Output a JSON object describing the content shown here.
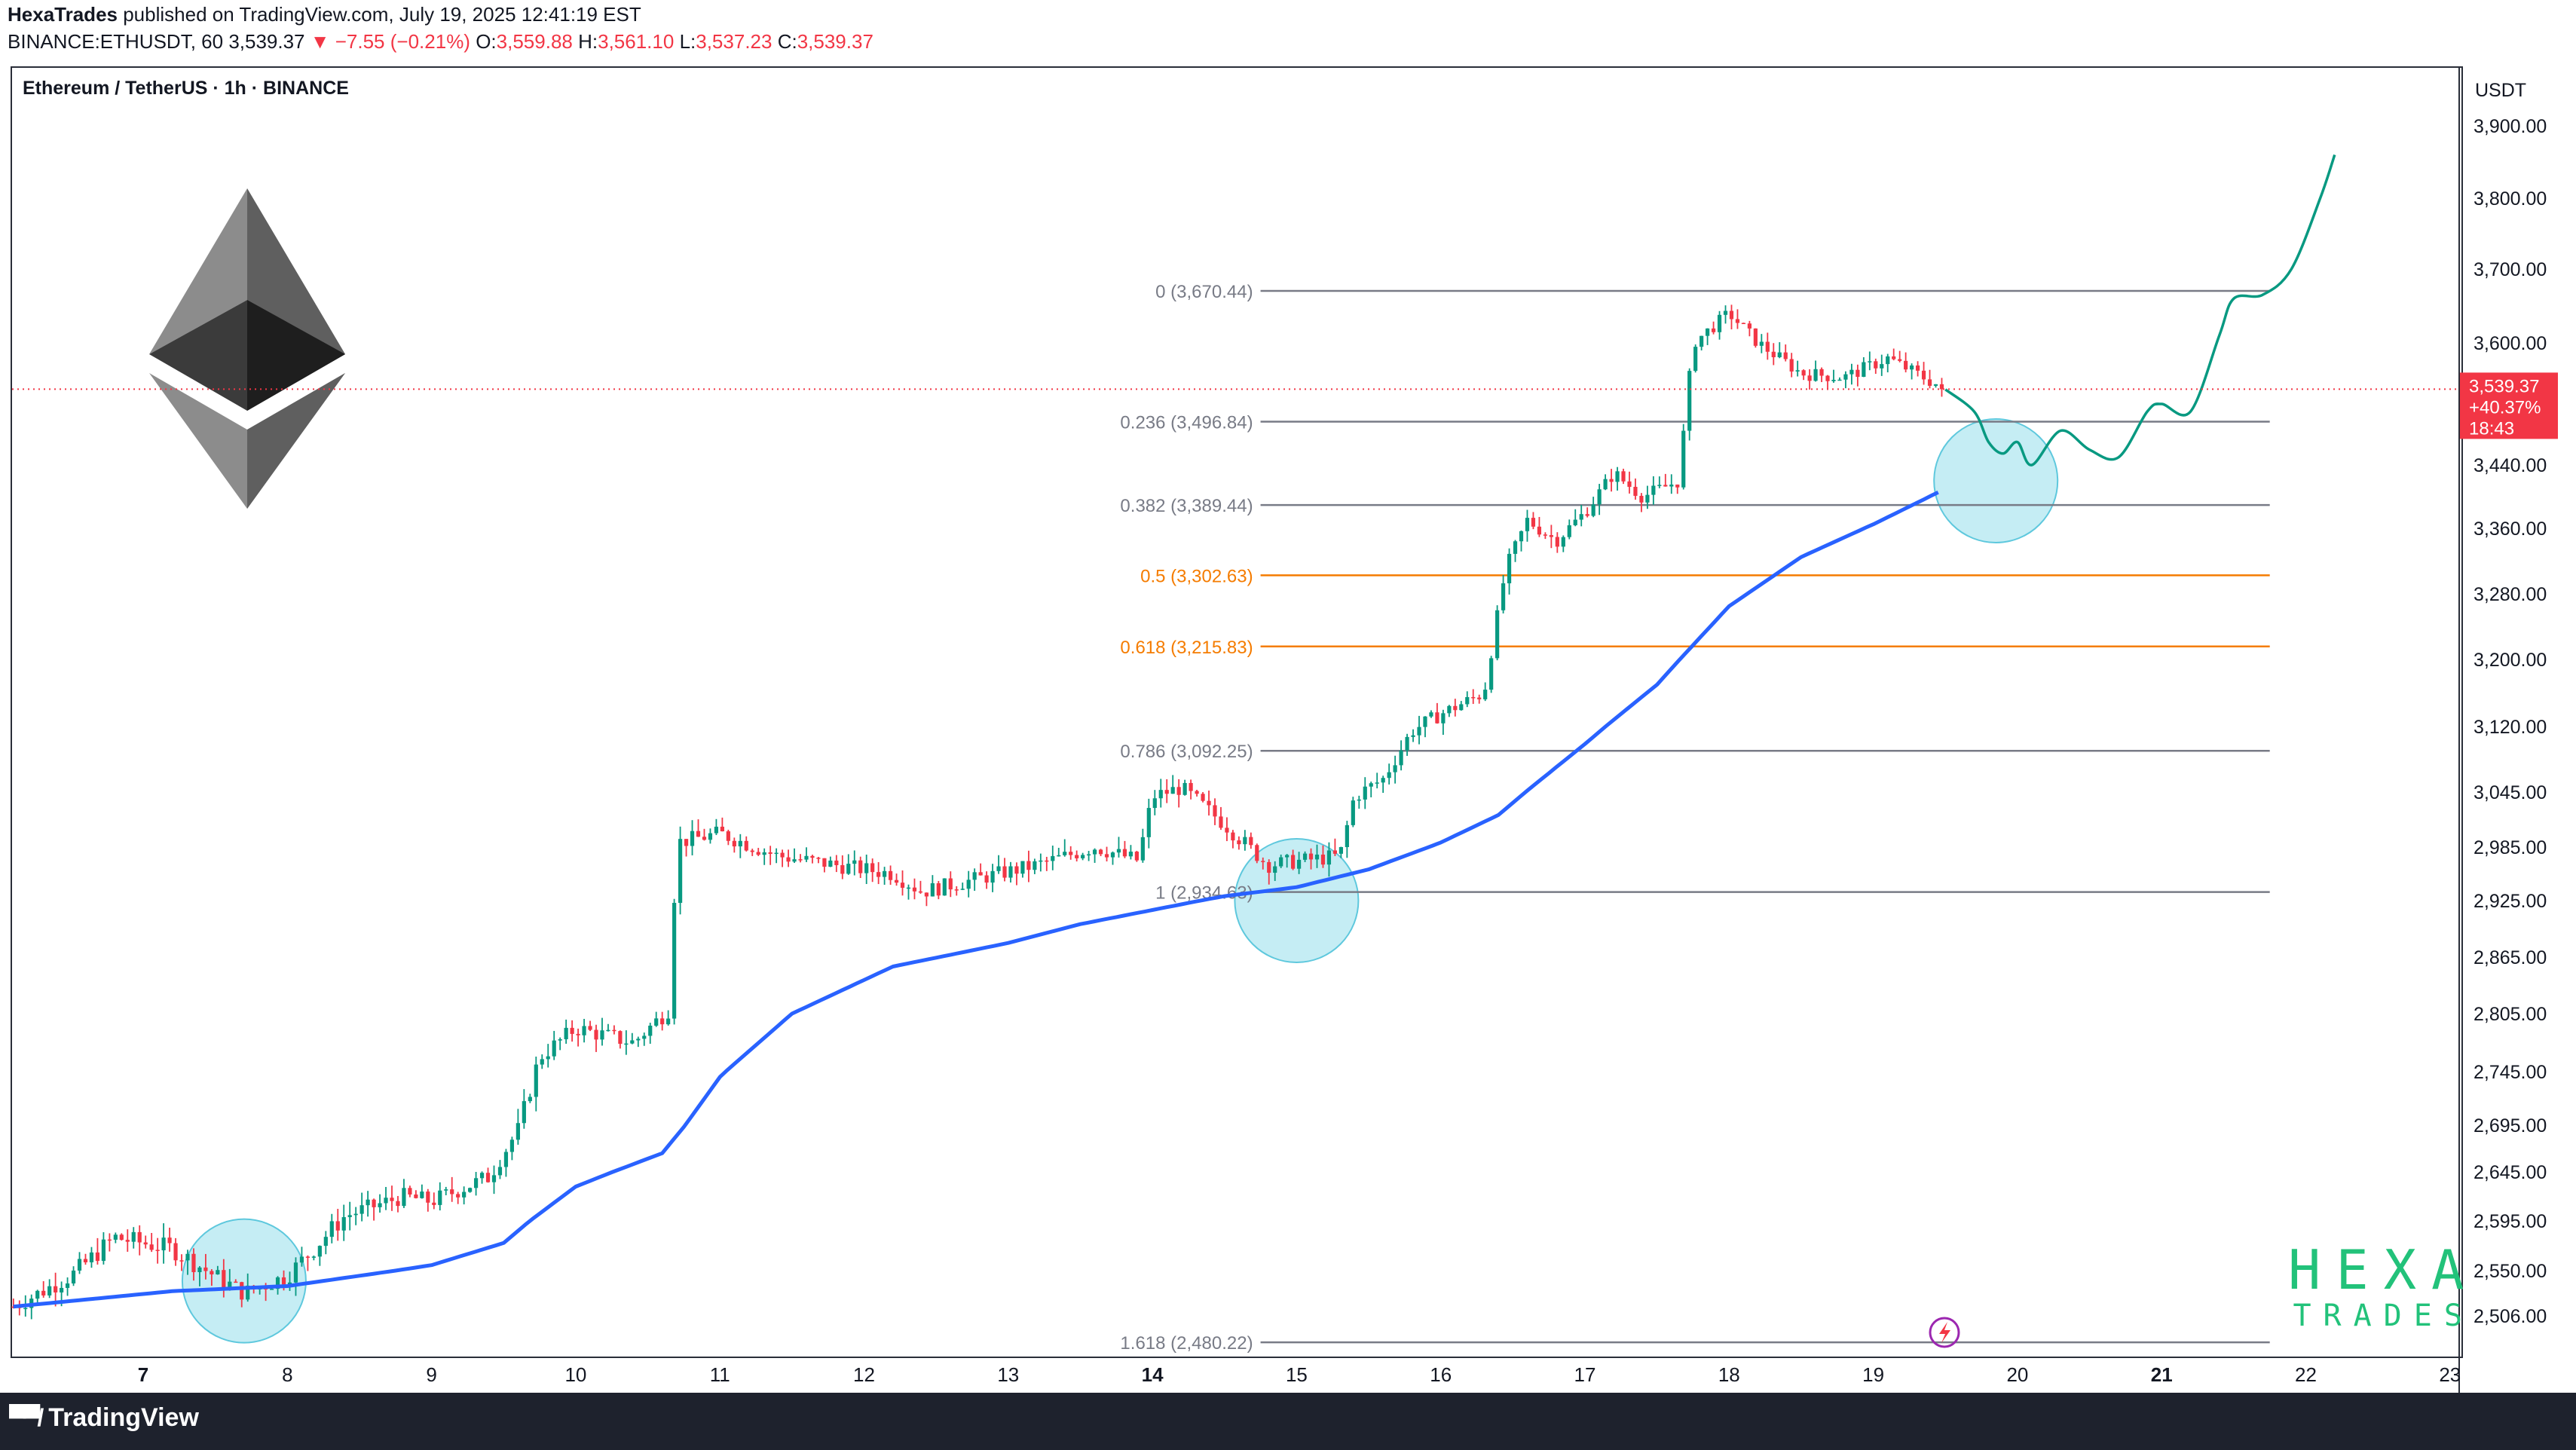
{
  "header": {
    "publisher": "HexaTrades",
    "published_text": "published on TradingView.com, July 19, 2025 12:41:19 EST",
    "symbol": "BINANCE:ETHUSDT, 60",
    "last": "3,539.37",
    "change": "−7.55 (−0.21%)",
    "o_label": "O:",
    "o_value": "3,559.88",
    "h_label": "H:",
    "h_value": "3,561.10",
    "l_label": "L:",
    "l_value": "3,537.23",
    "c_label": "C:",
    "c_value": "3,539.37"
  },
  "chart_title": "Ethereum / TetherUS · 1h · BINANCE",
  "currency": "USDT",
  "price_badge": {
    "price": "3,539.37",
    "change": "+40.37%",
    "timer": "18:43"
  },
  "footer": {
    "brand": "TradingView"
  },
  "watermark": {
    "line1": "HEXA",
    "line2": "TRADES"
  },
  "colors": {
    "up": "#089981",
    "down": "#f23645",
    "ema": "#2962ff",
    "fib_grey": "#787b86",
    "fib_orange": "#f57c00",
    "projection": "#089981",
    "highlight": "#7fd6e6",
    "price_line": "#f23645"
  },
  "chart_data": {
    "type": "candlestick",
    "title": "Ethereum / TetherUS · 1h · BINANCE",
    "y_unit": "USDT",
    "y_ticks": [
      "3,900.00",
      "3,800.00",
      "3,700.00",
      "3,600.00",
      "3,440.00",
      "3,360.00",
      "3,280.00",
      "3,200.00",
      "3,120.00",
      "3,045.00",
      "2,985.00",
      "2,925.00",
      "2,865.00",
      "2,805.00",
      "2,745.00",
      "2,695.00",
      "2,645.00",
      "2,595.00",
      "2,550.00",
      "2,506.00"
    ],
    "y_tick_values": [
      3900,
      3800,
      3700,
      3600,
      3440,
      3360,
      3280,
      3200,
      3120,
      3045,
      2985,
      2925,
      2865,
      2805,
      2745,
      2695,
      2645,
      2595,
      2550,
      2506
    ],
    "x_ticks": [
      "7",
      "8",
      "9",
      "10",
      "11",
      "12",
      "13",
      "14",
      "15",
      "16",
      "17",
      "18",
      "19",
      "20",
      "21",
      "22",
      "23"
    ],
    "x_ticks_bold": [
      "7",
      "14",
      "21"
    ],
    "x_range_days": [
      6.1,
      23.0
    ],
    "fib_levels": [
      {
        "label": "0 (3,670.44)",
        "value": 3670.44,
        "color": "grey"
      },
      {
        "label": "0.236 (3,496.84)",
        "value": 3496.84,
        "color": "grey"
      },
      {
        "label": "0.382 (3,389.44)",
        "value": 3389.44,
        "color": "grey"
      },
      {
        "label": "0.5 (3,302.63)",
        "value": 3302.63,
        "color": "orange"
      },
      {
        "label": "0.618 (3,215.83)",
        "value": 3215.83,
        "color": "orange"
      },
      {
        "label": "0.786 (3,092.25)",
        "value": 3092.25,
        "color": "grey"
      },
      {
        "label": "1 (2,934.63)",
        "value": 2934.63,
        "color": "grey"
      },
      {
        "label": "1.618 (2,480.22)",
        "value": 2480.22,
        "color": "grey"
      }
    ],
    "fib_range_days": [
      14.75,
      21.75
    ],
    "last_price": 3539.37,
    "price_anchors_day_close": [
      [
        6.1,
        2515
      ],
      [
        6.5,
        2545
      ],
      [
        6.8,
        2580
      ],
      [
        7.2,
        2570
      ],
      [
        7.7,
        2528
      ],
      [
        8.0,
        2545
      ],
      [
        8.4,
        2600
      ],
      [
        8.8,
        2620
      ],
      [
        9.0,
        2615
      ],
      [
        9.4,
        2640
      ],
      [
        9.6,
        2690
      ],
      [
        9.75,
        2760
      ],
      [
        10.0,
        2790
      ],
      [
        10.4,
        2775
      ],
      [
        10.65,
        2810
      ],
      [
        10.7,
        2990
      ],
      [
        11.0,
        3000
      ],
      [
        11.4,
        2975
      ],
      [
        11.8,
        2965
      ],
      [
        12.2,
        2955
      ],
      [
        12.4,
        2935
      ],
      [
        12.8,
        2950
      ],
      [
        13.2,
        2965
      ],
      [
        13.6,
        2985
      ],
      [
        13.9,
        2970
      ],
      [
        14.0,
        3040
      ],
      [
        14.2,
        3050
      ],
      [
        14.5,
        3010
      ],
      [
        14.8,
        2965
      ],
      [
        15.3,
        2975
      ],
      [
        15.4,
        3040
      ],
      [
        15.6,
        3060
      ],
      [
        15.8,
        3115
      ],
      [
        16.0,
        3135
      ],
      [
        16.3,
        3160
      ],
      [
        16.45,
        3310
      ],
      [
        16.6,
        3370
      ],
      [
        16.8,
        3345
      ],
      [
        17.0,
        3380
      ],
      [
        17.2,
        3430
      ],
      [
        17.4,
        3400
      ],
      [
        17.65,
        3420
      ],
      [
        17.75,
        3600
      ],
      [
        18.0,
        3640
      ],
      [
        18.2,
        3600
      ],
      [
        18.5,
        3560
      ],
      [
        18.8,
        3555
      ],
      [
        19.1,
        3580
      ],
      [
        19.5,
        3539.37
      ]
    ],
    "ema_day_value": [
      [
        6.1,
        2515
      ],
      [
        7.2,
        2530
      ],
      [
        8.0,
        2535
      ],
      [
        9.0,
        2555
      ],
      [
        9.5,
        2575
      ],
      [
        10.0,
        2630
      ],
      [
        10.6,
        2665
      ],
      [
        11.0,
        2740
      ],
      [
        11.5,
        2805
      ],
      [
        12.2,
        2855
      ],
      [
        13.0,
        2880
      ],
      [
        13.5,
        2900
      ],
      [
        14.0,
        2915
      ],
      [
        14.5,
        2930
      ],
      [
        15.0,
        2940
      ],
      [
        15.5,
        2960
      ],
      [
        16.0,
        2990
      ],
      [
        16.4,
        3020
      ],
      [
        17.0,
        3100
      ],
      [
        17.5,
        3170
      ],
      [
        18.0,
        3265
      ],
      [
        18.5,
        3325
      ],
      [
        19.0,
        3365
      ],
      [
        19.5,
        3410
      ]
    ],
    "projection_day_value": [
      [
        19.5,
        3539
      ],
      [
        19.7,
        3510
      ],
      [
        19.8,
        3470
      ],
      [
        19.9,
        3455
      ],
      [
        20.0,
        3470
      ],
      [
        20.1,
        3440
      ],
      [
        20.3,
        3485
      ],
      [
        20.5,
        3460
      ],
      [
        20.7,
        3450
      ],
      [
        20.9,
        3510
      ],
      [
        21.0,
        3520
      ],
      [
        21.2,
        3510
      ],
      [
        21.4,
        3610
      ],
      [
        21.5,
        3660
      ],
      [
        21.7,
        3665
      ],
      [
        21.9,
        3700
      ],
      [
        22.1,
        3800
      ],
      [
        22.2,
        3860
      ]
    ],
    "highlights_day_value": [
      [
        7.7,
        2540
      ],
      [
        15.0,
        2925
      ],
      [
        19.85,
        3420
      ]
    ]
  }
}
